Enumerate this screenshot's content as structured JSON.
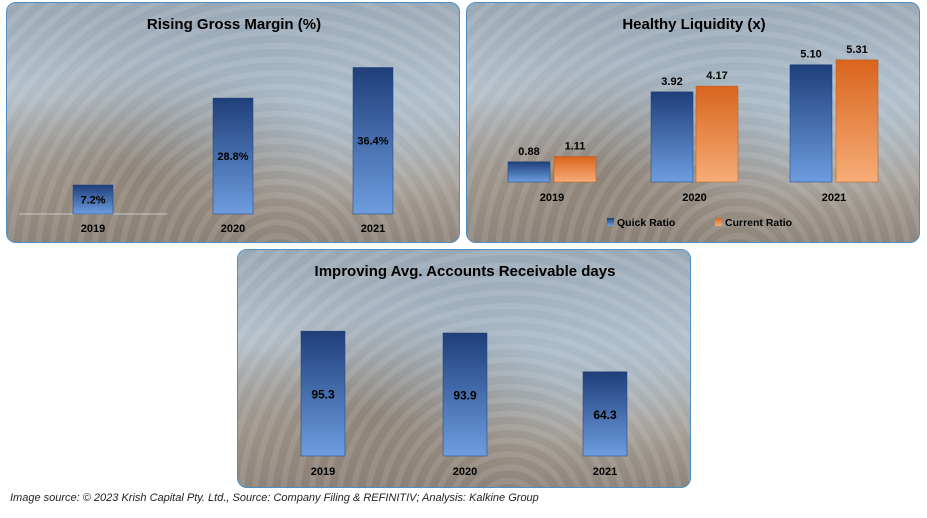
{
  "chart_data": [
    {
      "type": "bar",
      "title": "Rising Gross Margin (%)",
      "categories": [
        "2019",
        "2020",
        "2021"
      ],
      "values": [
        7.2,
        28.8,
        36.4
      ],
      "labels": [
        "7.2%",
        "28.8%",
        "36.4%"
      ],
      "ylim": [
        0,
        40
      ]
    },
    {
      "type": "bar",
      "title": "Healthy Liquidity (x)",
      "categories": [
        "2019",
        "2020",
        "2021"
      ],
      "series": [
        {
          "name": "Quick Ratio",
          "values": [
            0.88,
            3.92,
            5.1
          ],
          "labels": [
            "0.88",
            "3.92",
            "5.10"
          ],
          "color": "#2f5597"
        },
        {
          "name": "Current Ratio",
          "values": [
            1.11,
            4.17,
            5.31
          ],
          "labels": [
            "1.11",
            "4.17",
            "5.31"
          ],
          "color": "#ed7d31"
        }
      ],
      "legend": "bottom",
      "ylim": [
        0,
        6
      ]
    },
    {
      "type": "bar",
      "title": "Improving Avg. Accounts Receivable days",
      "categories": [
        "2019",
        "2020",
        "2021"
      ],
      "values": [
        95.3,
        93.9,
        64.3
      ],
      "labels": [
        "95.3",
        "93.9",
        "64.3"
      ],
      "ylim": [
        0,
        100
      ]
    }
  ],
  "caption": "Image source: © 2023 Krish Capital Pty. Ltd., Source: Company Filing & REFINITIV; Analysis: Kalkine Group"
}
